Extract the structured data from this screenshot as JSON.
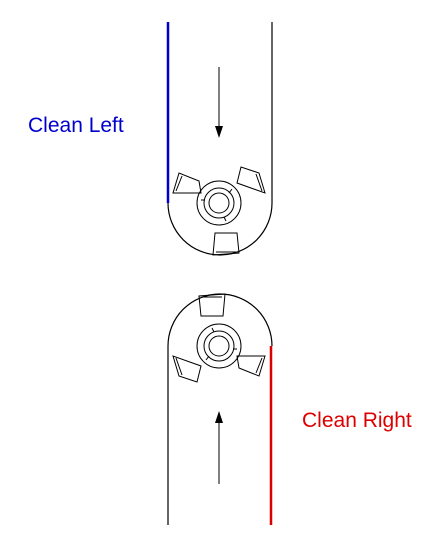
{
  "labels": {
    "top": "Clean Left",
    "bottom": "Clean Right"
  },
  "colors": {
    "left_edge": "#0000cc",
    "right_edge": "#dd0000",
    "line": "#000000",
    "background": "#ffffff"
  },
  "icons": {
    "top_tool": "cutter-icon",
    "bottom_tool": "cutter-icon",
    "top_arrow": "arrow-down-icon",
    "bottom_arrow": "arrow-up-icon"
  }
}
